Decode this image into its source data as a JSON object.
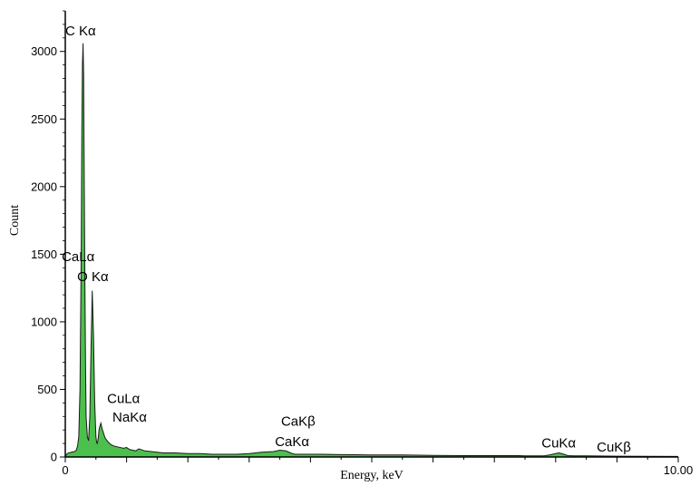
{
  "chart_data": {
    "type": "area",
    "title": "",
    "xlabel": "Energy, keV",
    "ylabel": "Count",
    "xlim": [
      0,
      10
    ],
    "ylim": [
      0,
      3300
    ],
    "grid": false,
    "x_ticks": [
      {
        "value": 0,
        "label": "0"
      },
      {
        "value": 10,
        "label": "10.00"
      }
    ],
    "y_ticks": [
      {
        "value": 0,
        "label": "0"
      },
      {
        "value": 500,
        "label": "500"
      },
      {
        "value": 1000,
        "label": "1000"
      },
      {
        "value": 1500,
        "label": "1500"
      },
      {
        "value": 2000,
        "label": "2000"
      },
      {
        "value": 2500,
        "label": "2500"
      },
      {
        "value": 3000,
        "label": "3000"
      }
    ],
    "fill_color": "#4cc04c",
    "line_color": "#1a1a1a",
    "series": [
      {
        "x": [
          0.0,
          0.02,
          0.05,
          0.1,
          0.15,
          0.18,
          0.2,
          0.22,
          0.24,
          0.26,
          0.27,
          0.28,
          0.29,
          0.3,
          0.31,
          0.32,
          0.33,
          0.34,
          0.36,
          0.38,
          0.4,
          0.42,
          0.44,
          0.46,
          0.48,
          0.5,
          0.51,
          0.52,
          0.53,
          0.54,
          0.55,
          0.56,
          0.58,
          0.6,
          0.65,
          0.7,
          0.75,
          0.8,
          0.85,
          0.9,
          0.95,
          1.0,
          1.05,
          1.1,
          1.15,
          1.2,
          1.3,
          1.4,
          1.5,
          1.6,
          1.8,
          2.0,
          2.2,
          2.4,
          2.6,
          2.8,
          3.0,
          3.2,
          3.4,
          3.5,
          3.6,
          3.7,
          3.75,
          3.8,
          3.9,
          4.0,
          4.2,
          4.5,
          5.0,
          5.5,
          6.0,
          6.5,
          7.0,
          7.4,
          7.5,
          7.6,
          7.8,
          7.9,
          8.0,
          8.05,
          8.1,
          8.2,
          8.3,
          8.5,
          9.0,
          9.5,
          10.0
        ],
        "y": [
          0,
          20,
          30,
          35,
          40,
          50,
          80,
          150,
          500,
          1500,
          2400,
          2900,
          3060,
          2800,
          2000,
          1300,
          700,
          300,
          150,
          120,
          300,
          800,
          1230,
          900,
          400,
          150,
          110,
          100,
          120,
          150,
          200,
          220,
          250,
          210,
          140,
          110,
          90,
          80,
          75,
          70,
          65,
          70,
          55,
          50,
          45,
          60,
          45,
          40,
          35,
          30,
          30,
          25,
          25,
          20,
          20,
          20,
          25,
          35,
          40,
          50,
          45,
          25,
          20,
          20,
          20,
          20,
          20,
          18,
          15,
          15,
          12,
          10,
          10,
          10,
          8,
          8,
          8,
          15,
          25,
          30,
          25,
          10,
          8,
          8,
          6,
          5,
          4
        ]
      }
    ],
    "annotations": [
      {
        "text": "C Kα",
        "x": 0.25,
        "y": 3120
      },
      {
        "text": "CaLα",
        "x": 0.21,
        "y": 1450
      },
      {
        "text": "O Kα",
        "x": 0.45,
        "y": 1300
      },
      {
        "text": "CuLα",
        "x": 0.95,
        "y": 400
      },
      {
        "text": "NaKα",
        "x": 1.05,
        "y": 260
      },
      {
        "text": "CaKβ",
        "x": 3.8,
        "y": 230
      },
      {
        "text": "CaKα",
        "x": 3.7,
        "y": 80
      },
      {
        "text": "CuKα",
        "x": 8.05,
        "y": 70
      },
      {
        "text": "CuKβ",
        "x": 8.95,
        "y": 40
      }
    ]
  }
}
